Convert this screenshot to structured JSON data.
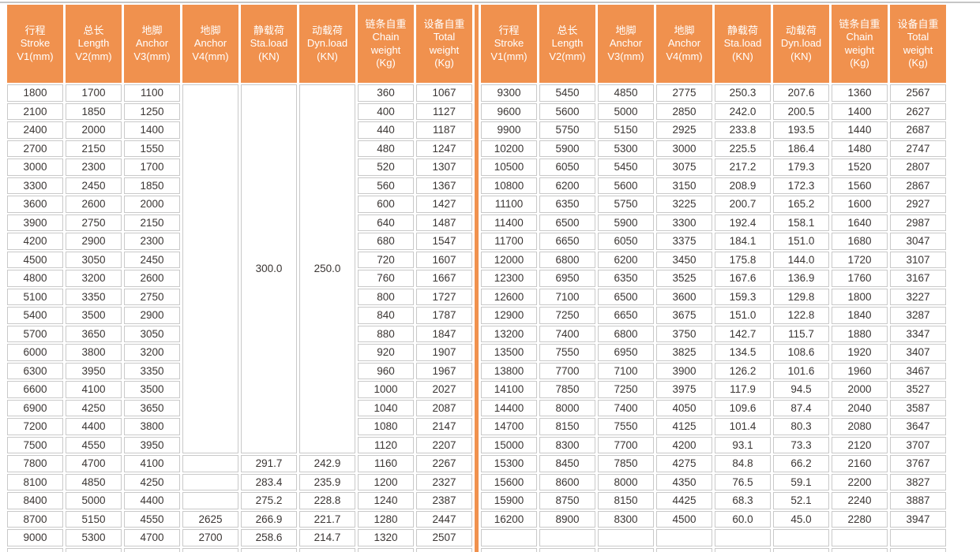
{
  "accent_color": "#f0914e",
  "grid_color": "#c9c9c9",
  "text_color": "#3b3634",
  "table": {
    "headers": [
      {
        "lines": [
          "行程",
          "Stroke",
          "V1(mm)"
        ]
      },
      {
        "lines": [
          "总长",
          "Length",
          "V2(mm)"
        ]
      },
      {
        "lines": [
          "地脚",
          "Anchor",
          "V3(mm)"
        ]
      },
      {
        "lines": [
          "地脚",
          "Anchor",
          "V4(mm)"
        ]
      },
      {
        "lines": [
          "静载荷",
          "Sta.load",
          "(KN)"
        ]
      },
      {
        "lines": [
          "动载荷",
          "Dyn.load",
          "(KN)"
        ]
      },
      {
        "lines": [
          "链条自重",
          "Chain",
          "weight",
          "(Kg)"
        ]
      },
      {
        "lines": [
          "设备自重",
          "Total",
          "weight",
          "(Kg)"
        ]
      }
    ],
    "left": {
      "merged": {
        "rows": 20,
        "v4": "",
        "sta": "300.0",
        "dyn": "250.0"
      },
      "rows": [
        [
          "1800",
          "1700",
          "1100",
          null,
          null,
          null,
          "360",
          "1067"
        ],
        [
          "2100",
          "1850",
          "1250",
          null,
          null,
          null,
          "400",
          "1127"
        ],
        [
          "2400",
          "2000",
          "1400",
          null,
          null,
          null,
          "440",
          "1187"
        ],
        [
          "2700",
          "2150",
          "1550",
          null,
          null,
          null,
          "480",
          "1247"
        ],
        [
          "3000",
          "2300",
          "1700",
          null,
          null,
          null,
          "520",
          "1307"
        ],
        [
          "3300",
          "2450",
          "1850",
          null,
          null,
          null,
          "560",
          "1367"
        ],
        [
          "3600",
          "2600",
          "2000",
          null,
          null,
          null,
          "600",
          "1427"
        ],
        [
          "3900",
          "2750",
          "2150",
          null,
          null,
          null,
          "640",
          "1487"
        ],
        [
          "4200",
          "2900",
          "2300",
          null,
          null,
          null,
          "680",
          "1547"
        ],
        [
          "4500",
          "3050",
          "2450",
          null,
          null,
          null,
          "720",
          "1607"
        ],
        [
          "4800",
          "3200",
          "2600",
          null,
          null,
          null,
          "760",
          "1667"
        ],
        [
          "5100",
          "3350",
          "2750",
          null,
          null,
          null,
          "800",
          "1727"
        ],
        [
          "5400",
          "3500",
          "2900",
          null,
          null,
          null,
          "840",
          "1787"
        ],
        [
          "5700",
          "3650",
          "3050",
          null,
          null,
          null,
          "880",
          "1847"
        ],
        [
          "6000",
          "3800",
          "3200",
          null,
          null,
          null,
          "920",
          "1907"
        ],
        [
          "6300",
          "3950",
          "3350",
          null,
          null,
          null,
          "960",
          "1967"
        ],
        [
          "6600",
          "4100",
          "3500",
          null,
          null,
          null,
          "1000",
          "2027"
        ],
        [
          "6900",
          "4250",
          "3650",
          null,
          null,
          null,
          "1040",
          "2087"
        ],
        [
          "7200",
          "4400",
          "3800",
          null,
          null,
          null,
          "1080",
          "2147"
        ],
        [
          "7500",
          "4550",
          "3950",
          null,
          null,
          null,
          "1120",
          "2207"
        ],
        [
          "7800",
          "4700",
          "4100",
          "",
          "291.7",
          "242.9",
          "1160",
          "2267"
        ],
        [
          "8100",
          "4850",
          "4250",
          "",
          "283.4",
          "235.9",
          "1200",
          "2327"
        ],
        [
          "8400",
          "5000",
          "4400",
          "",
          "275.2",
          "228.8",
          "1240",
          "2387"
        ],
        [
          "8700",
          "5150",
          "4550",
          "2625",
          "266.9",
          "221.7",
          "1280",
          "2447"
        ],
        [
          "9000",
          "5300",
          "4700",
          "2700",
          "258.6",
          "214.7",
          "1320",
          "2507"
        ]
      ]
    },
    "right": {
      "rows": [
        [
          "9300",
          "5450",
          "4850",
          "2775",
          "250.3",
          "207.6",
          "1360",
          "2567"
        ],
        [
          "9600",
          "5600",
          "5000",
          "2850",
          "242.0",
          "200.5",
          "1400",
          "2627"
        ],
        [
          "9900",
          "5750",
          "5150",
          "2925",
          "233.8",
          "193.5",
          "1440",
          "2687"
        ],
        [
          "10200",
          "5900",
          "5300",
          "3000",
          "225.5",
          "186.4",
          "1480",
          "2747"
        ],
        [
          "10500",
          "6050",
          "5450",
          "3075",
          "217.2",
          "179.3",
          "1520",
          "2807"
        ],
        [
          "10800",
          "6200",
          "5600",
          "3150",
          "208.9",
          "172.3",
          "1560",
          "2867"
        ],
        [
          "11100",
          "6350",
          "5750",
          "3225",
          "200.7",
          "165.2",
          "1600",
          "2927"
        ],
        [
          "11400",
          "6500",
          "5900",
          "3300",
          "192.4",
          "158.1",
          "1640",
          "2987"
        ],
        [
          "11700",
          "6650",
          "6050",
          "3375",
          "184.1",
          "151.0",
          "1680",
          "3047"
        ],
        [
          "12000",
          "6800",
          "6200",
          "3450",
          "175.8",
          "144.0",
          "1720",
          "3107"
        ],
        [
          "12300",
          "6950",
          "6350",
          "3525",
          "167.6",
          "136.9",
          "1760",
          "3167"
        ],
        [
          "12600",
          "7100",
          "6500",
          "3600",
          "159.3",
          "129.8",
          "1800",
          "3227"
        ],
        [
          "12900",
          "7250",
          "6650",
          "3675",
          "151.0",
          "122.8",
          "1840",
          "3287"
        ],
        [
          "13200",
          "7400",
          "6800",
          "3750",
          "142.7",
          "115.7",
          "1880",
          "3347"
        ],
        [
          "13500",
          "7550",
          "6950",
          "3825",
          "134.5",
          "108.6",
          "1920",
          "3407"
        ],
        [
          "13800",
          "7700",
          "7100",
          "3900",
          "126.2",
          "101.6",
          "1960",
          "3467"
        ],
        [
          "14100",
          "7850",
          "7250",
          "3975",
          "117.9",
          "94.5",
          "2000",
          "3527"
        ],
        [
          "14400",
          "8000",
          "7400",
          "4050",
          "109.6",
          "87.4",
          "2040",
          "3587"
        ],
        [
          "14700",
          "8150",
          "7550",
          "4125",
          "101.4",
          "80.3",
          "2080",
          "3647"
        ],
        [
          "15000",
          "8300",
          "7700",
          "4200",
          "93.1",
          "73.3",
          "2120",
          "3707"
        ],
        [
          "15300",
          "8450",
          "7850",
          "4275",
          "84.8",
          "66.2",
          "2160",
          "3767"
        ],
        [
          "15600",
          "8600",
          "8000",
          "4350",
          "76.5",
          "59.1",
          "2200",
          "3827"
        ],
        [
          "15900",
          "8750",
          "8150",
          "4425",
          "68.3",
          "52.1",
          "2240",
          "3887"
        ],
        [
          "16200",
          "8900",
          "8300",
          "4500",
          "60.0",
          "45.0",
          "2280",
          "3947"
        ],
        [
          "",
          "",
          "",
          "",
          "",
          "",
          "",
          ""
        ]
      ]
    }
  }
}
